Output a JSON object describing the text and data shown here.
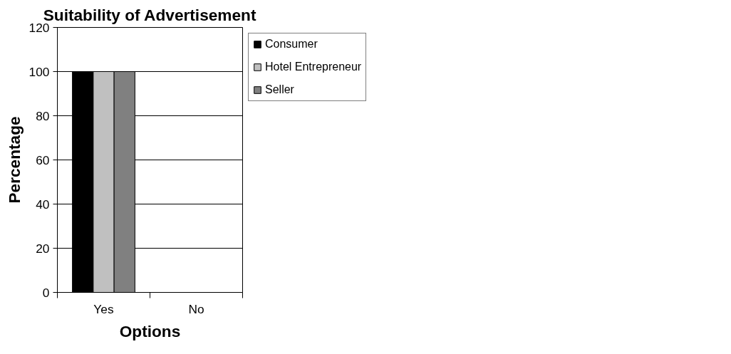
{
  "chart_data": {
    "type": "bar",
    "title": "Suitability of Advertisement",
    "xlabel": "Options",
    "ylabel": "Percentage",
    "categories": [
      "Yes",
      "No"
    ],
    "series": [
      {
        "name": "Consumer",
        "color": "#000000",
        "values": [
          100,
          0
        ]
      },
      {
        "name": "Hotel Entrepreneur",
        "color": "#c0c0c0",
        "values": [
          100,
          0
        ]
      },
      {
        "name": "Seller",
        "color": "#808080",
        "values": [
          100,
          0
        ]
      }
    ],
    "ylim": [
      0,
      120
    ],
    "yticks": [
      0,
      20,
      40,
      60,
      80,
      100,
      120
    ],
    "grid": "y",
    "legend": "top right"
  }
}
